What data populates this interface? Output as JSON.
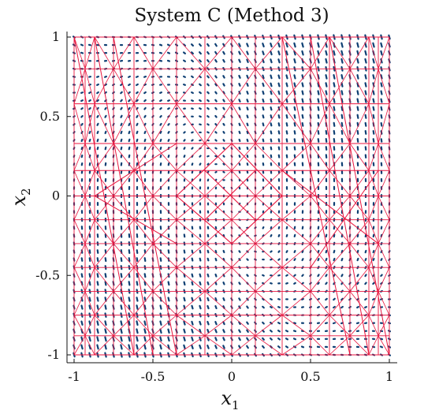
{
  "chart_data": {
    "type": "vector-field-mesh",
    "title": "System C (Method 3)",
    "xlabel": "x",
    "xlabel_sub": "1",
    "ylabel": "x",
    "ylabel_sub": "2",
    "xlim": [
      -1,
      1
    ],
    "ylim": [
      -1,
      1
    ],
    "xticks": [
      -1,
      -0.5,
      0,
      0.5,
      1
    ],
    "yticks": [
      -1,
      -0.5,
      0,
      0.5,
      1
    ],
    "xtick_labels": [
      "-1",
      "-0.5",
      "0",
      "0.5",
      "1"
    ],
    "ytick_labels": [
      "-1",
      "-0.5",
      "0",
      "0.5",
      "1"
    ],
    "grid": false,
    "mesh_color": "#e8163f",
    "vector_color": "#0e3f73",
    "series": [
      {
        "type": "quiver",
        "description_color": "#0e3f73"
      },
      {
        "type": "triangulation-mesh",
        "description_color": "#e8163f"
      }
    ]
  }
}
